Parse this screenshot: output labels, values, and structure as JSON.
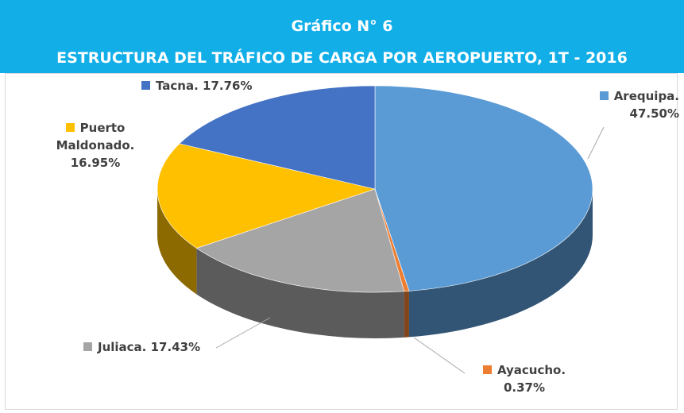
{
  "chart_data": {
    "type": "pie",
    "title": "Gráfico N° 6",
    "subtitle": "ESTRUCTURA DEL TRÁFICO DE CARGA POR AEROPUERTO, 1T - 2016",
    "categories": [
      "Arequipa.",
      "Ayacucho.",
      "Juliaca.",
      "Puerto Maldonado.",
      "Tacna."
    ],
    "values": [
      47.5,
      0.37,
      17.43,
      16.95,
      17.76
    ],
    "value_labels": [
      "47.50%",
      "0.37%",
      "17.43%",
      "16.95%",
      "17.76%"
    ],
    "colors": [
      "#5b9bd5",
      "#ed7d31",
      "#a5a5a5",
      "#ffc000",
      "#4472c4"
    ]
  }
}
